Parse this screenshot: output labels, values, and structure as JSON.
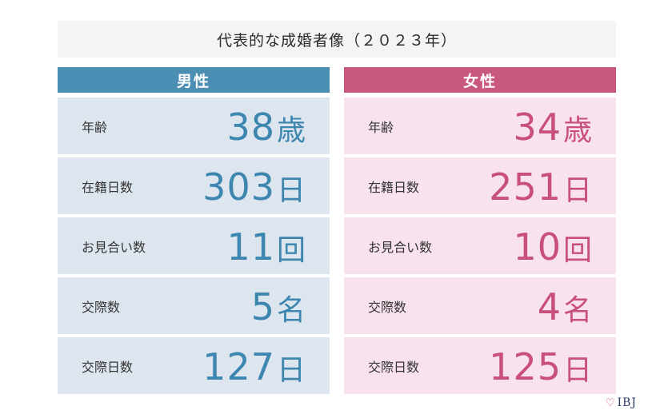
{
  "title": "代表的な成婚者像（２０２３年）",
  "columns": [
    {
      "header": "男性",
      "rows": [
        {
          "label": "年齢",
          "number": "38",
          "unit": "歳"
        },
        {
          "label": "在籍日数",
          "number": "303",
          "unit": "日"
        },
        {
          "label": "お見合い数",
          "number": "11",
          "unit": "回"
        },
        {
          "label": "交際数",
          "number": "5",
          "unit": "名"
        },
        {
          "label": "交際日数",
          "number": "127",
          "unit": "日"
        }
      ]
    },
    {
      "header": "女性",
      "rows": [
        {
          "label": "年齢",
          "number": "34",
          "unit": "歳"
        },
        {
          "label": "在籍日数",
          "number": "251",
          "unit": "日"
        },
        {
          "label": "お見合い数",
          "number": "10",
          "unit": "回"
        },
        {
          "label": "交際数",
          "number": "4",
          "unit": "名"
        },
        {
          "label": "交際日数",
          "number": "125",
          "unit": "日"
        }
      ]
    }
  ],
  "colors": {
    "male_accent": "#4a8fb3",
    "female_accent": "#c9587f",
    "male_bg": "#dde5ee",
    "female_bg": "#f7e2ee"
  },
  "logo": {
    "text": "IBJ",
    "icon": "heart-icon"
  }
}
